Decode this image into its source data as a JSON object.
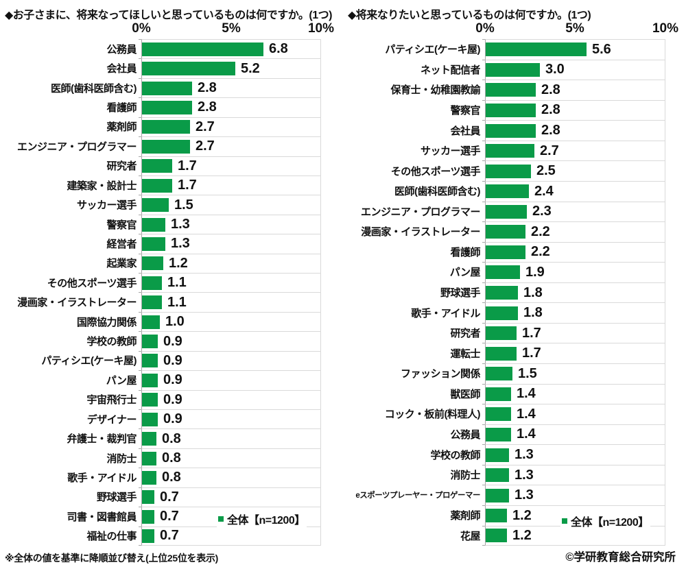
{
  "footnote": "※全体の値を基準に降順並び替え(上位25位を表示)",
  "copyright": "©学研教育総合研究所",
  "colors": {
    "bar": "#0a9b48",
    "grid": "#d9d9d9",
    "axis": "#a6a6a6"
  },
  "chart_data": [
    {
      "type": "bar",
      "orientation": "horizontal",
      "title": "◆お子さまに、将来なってほしいと思っているものは何ですか。(1つ)",
      "legend": "全体【n=1200】",
      "legend_position": "bottom-right-inside",
      "xlim": [
        0,
        10
      ],
      "tick_labels": [
        "0%",
        "5%",
        "10%"
      ],
      "grid": true,
      "categories": [
        "公務員",
        "会社員",
        "医師(歯科医師含む)",
        "看護師",
        "薬剤師",
        "エンジニア・プログラマー",
        "研究者",
        "建築家・設計士",
        "サッカー選手",
        "警察官",
        "経営者",
        "起業家",
        "その他スポーツ選手",
        "漫画家・イラストレーター",
        "国際協力関係",
        "学校の教師",
        "パティシエ(ケーキ屋)",
        "パン屋",
        "宇宙飛行士",
        "デザイナー",
        "弁護士・裁判官",
        "消防士",
        "歌手・アイドル",
        "野球選手",
        "司書・図書館員",
        "福祉の仕事"
      ],
      "values": [
        6.8,
        5.2,
        2.8,
        2.8,
        2.7,
        2.7,
        1.7,
        1.7,
        1.5,
        1.3,
        1.3,
        1.2,
        1.1,
        1.1,
        1.0,
        0.9,
        0.9,
        0.9,
        0.9,
        0.9,
        0.8,
        0.8,
        0.8,
        0.7,
        0.7,
        0.7
      ]
    },
    {
      "type": "bar",
      "orientation": "horizontal",
      "title": "◆将来なりたいと思っているものは何ですか。(1つ)",
      "legend": "全体【n=1200】",
      "legend_position": "bottom-right-inside",
      "xlim": [
        0,
        10
      ],
      "tick_labels": [
        "0%",
        "5%",
        "10%"
      ],
      "grid": true,
      "categories": [
        "パティシエ(ケーキ屋)",
        "ネット配信者",
        "保育士・幼稚園教諭",
        "警察官",
        "会社員",
        "サッカー選手",
        "その他スポーツ選手",
        "医師(歯科医師含む)",
        "エンジニア・プログラマー",
        "漫画家・イラストレーター",
        "看護師",
        "パン屋",
        "野球選手",
        "歌手・アイドル",
        "研究者",
        "運転士",
        "ファッション関係",
        "獣医師",
        "コック・板前(料理人)",
        "公務員",
        "学校の教師",
        "消防士",
        "eスポーツプレーヤー・プロゲーマー",
        "薬剤師",
        "花屋"
      ],
      "values": [
        5.6,
        3.0,
        2.8,
        2.8,
        2.8,
        2.7,
        2.5,
        2.4,
        2.3,
        2.2,
        2.2,
        1.9,
        1.8,
        1.8,
        1.7,
        1.7,
        1.5,
        1.4,
        1.4,
        1.4,
        1.3,
        1.3,
        1.3,
        1.2,
        1.2
      ]
    }
  ]
}
